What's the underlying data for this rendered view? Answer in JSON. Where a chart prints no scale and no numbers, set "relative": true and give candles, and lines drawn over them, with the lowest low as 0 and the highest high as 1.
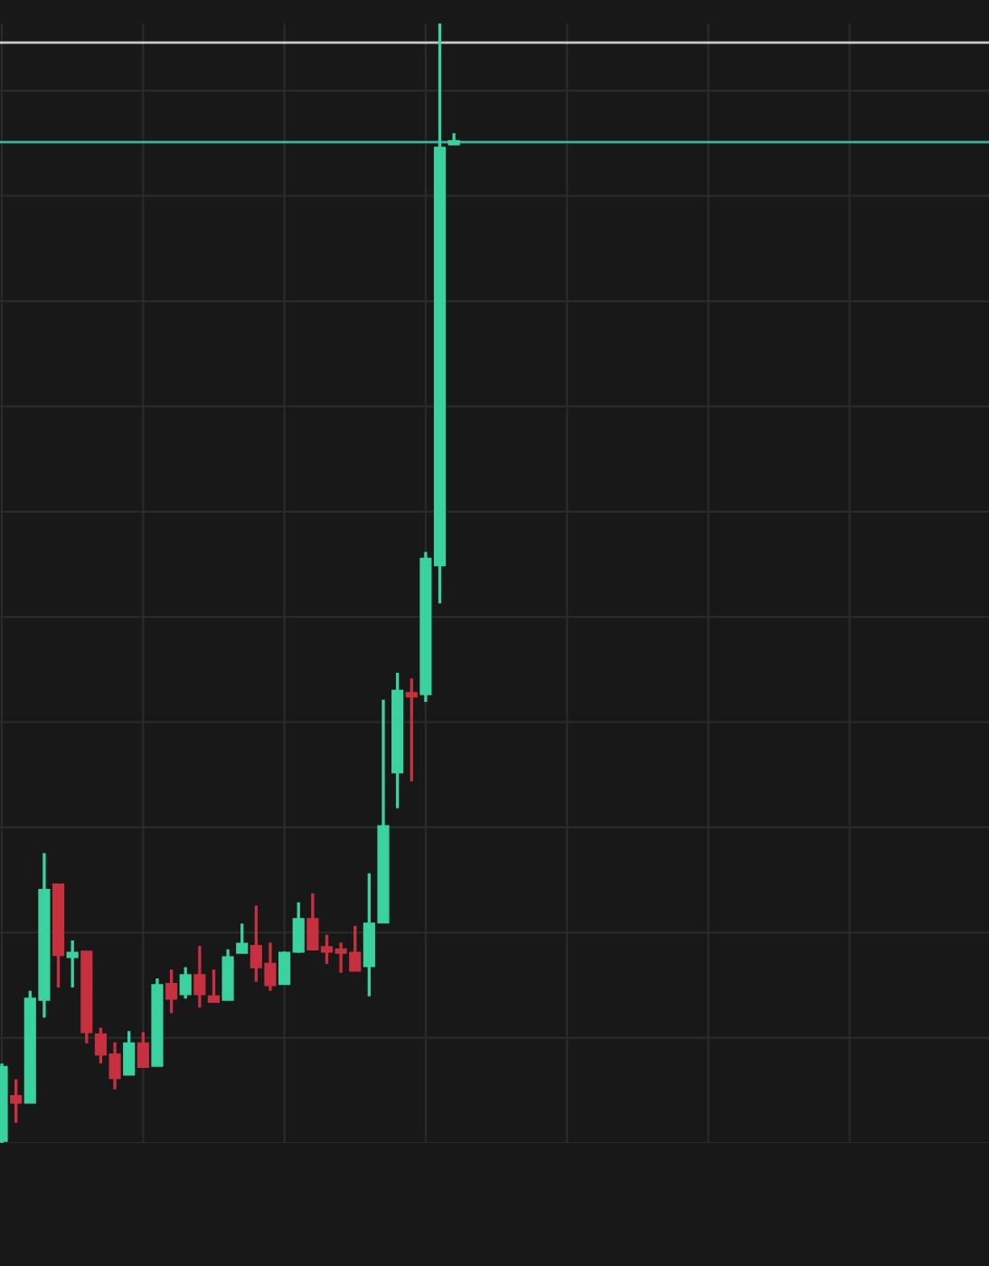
{
  "chart_data": {
    "type": "candlestick",
    "relative": true,
    "grid": true,
    "categories": [
      null,
      null,
      null,
      null,
      null,
      null,
      null,
      null,
      null,
      null,
      null,
      null,
      null,
      null,
      null,
      null,
      null,
      null,
      null,
      null,
      null,
      null,
      null,
      null,
      null,
      null,
      null,
      null,
      null,
      null,
      null,
      null,
      null
    ],
    "ohlc": [
      [
        0.002,
        0.071,
        0,
        0.068
      ],
      [
        0.042,
        0.057,
        0.018,
        0.036
      ],
      [
        0.036,
        0.136,
        0.036,
        0.129
      ],
      [
        0.128,
        0.259,
        0.112,
        0.226
      ],
      [
        0.231,
        0.231,
        0.139,
        0.168
      ],
      [
        0.166,
        0.181,
        0.139,
        0.17
      ],
      [
        0.171,
        0.171,
        0.089,
        0.099
      ],
      [
        0.097,
        0.103,
        0.071,
        0.079
      ],
      [
        0.079,
        0.09,
        0.048,
        0.058
      ],
      [
        0.061,
        0.1,
        0.061,
        0.089
      ],
      [
        0.089,
        0.099,
        0.068,
        0.068
      ],
      [
        0.069,
        0.147,
        0.069,
        0.141
      ],
      [
        0.142,
        0.155,
        0.116,
        0.129
      ],
      [
        0.133,
        0.157,
        0.129,
        0.15
      ],
      [
        0.15,
        0.176,
        0.121,
        0.133
      ],
      [
        0.131,
        0.155,
        0.126,
        0.126
      ],
      [
        0.128,
        0.173,
        0.128,
        0.166
      ],
      [
        0.17,
        0.196,
        0.17,
        0.178
      ],
      [
        0.176,
        0.212,
        0.144,
        0.157
      ],
      [
        0.16,
        0.179,
        0.136,
        0.141
      ],
      [
        0.142,
        0.171,
        0.142,
        0.17
      ],
      [
        0.171,
        0.215,
        0.17,
        0.2
      ],
      [
        0.2,
        0.223,
        0.173,
        0.173
      ],
      [
        0.175,
        0.186,
        0.16,
        0.171
      ],
      [
        0.173,
        0.179,
        0.152,
        0.17
      ],
      [
        0.17,
        0.194,
        0.154,
        0.154
      ],
      [
        0.158,
        0.241,
        0.131,
        0.196
      ],
      [
        0.197,
        0.396,
        0.197,
        0.283
      ],
      [
        0.331,
        0.42,
        0.299,
        0.404
      ],
      [
        0.402,
        0.415,
        0.323,
        0.399
      ],
      [
        0.401,
        0.528,
        0.394,
        0.522
      ],
      [
        0.516,
        1.0,
        0.482,
        0.889
      ],
      [
        0.892,
        0.902,
        0.892,
        0.895
      ]
    ],
    "colors": [
      "#3ad29f",
      "#c7303f",
      "#3ad29f",
      "#3ad29f",
      "#c7303f",
      "#3ad29f",
      "#c7303f",
      "#c7303f",
      "#c7303f",
      "#3ad29f",
      "#c7303f",
      "#3ad29f",
      "#c7303f",
      "#3ad29f",
      "#c7303f",
      "#c7303f",
      "#3ad29f",
      "#3ad29f",
      "#c7303f",
      "#c7303f",
      "#3ad29f",
      "#3ad29f",
      "#c7303f",
      "#c7303f",
      "#c7303f",
      "#c7303f",
      "#3ad29f",
      "#3ad29f",
      "#3ad29f",
      "#c7303f",
      "#3ad29f",
      "#3ad29f",
      "#3ad29f"
    ],
    "ref_lines": [
      {
        "axis": "y",
        "value": 0.983,
        "color": "#c8c8c8"
      },
      {
        "axis": "y",
        "value": 0.894,
        "color": "#3bb3a0"
      }
    ]
  }
}
